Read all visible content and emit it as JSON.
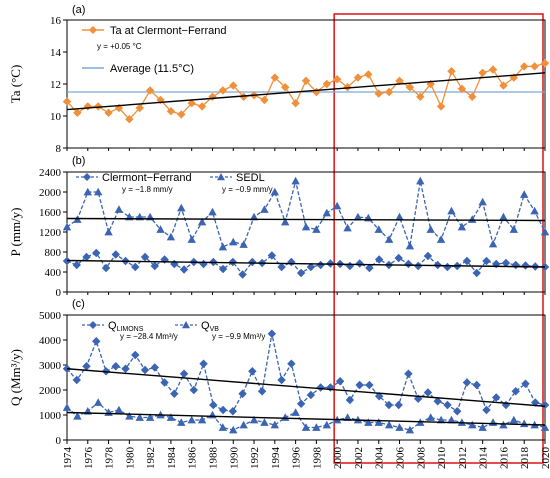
{
  "chart_data": [
    {
      "panel": "(a)",
      "type": "line",
      "ylabel": "Ta (°C)",
      "ylim": [
        8,
        16
      ],
      "yticks": [
        8,
        10,
        12,
        14,
        16
      ],
      "x_start": 1974,
      "series": [
        {
          "name": "Ta at Clermont−Ferrand",
          "color": "#f0903a",
          "marker": "diamond",
          "values": [
            10.9,
            10.2,
            10.6,
            10.6,
            10.2,
            10.5,
            9.8,
            10.5,
            11.6,
            11.0,
            10.3,
            10.1,
            10.8,
            10.6,
            11.2,
            11.6,
            11.9,
            11.2,
            11.3,
            11.0,
            12.4,
            11.8,
            10.8,
            12.2,
            11.5,
            12.0,
            12.3,
            11.8,
            12.4,
            12.6,
            11.4,
            11.5,
            12.2,
            11.8,
            11.2,
            12.0,
            10.6,
            12.8,
            11.7,
            11.2,
            12.7,
            12.9,
            11.9,
            12.4,
            13.1,
            13.1,
            13.3
          ]
        }
      ],
      "trend": {
        "label": "y = +0.05 °C",
        "start": 10.4,
        "end": 12.7
      },
      "average": {
        "label": "Average (11.5°C)",
        "value": 11.5,
        "color": "#7fa7d6"
      }
    },
    {
      "panel": "(b)",
      "type": "line",
      "ylabel": "P (mm/y)",
      "ylim": [
        0,
        2400
      ],
      "yticks": [
        0,
        400,
        800,
        1200,
        1600,
        2000,
        2400
      ],
      "x_start": 1974,
      "series": [
        {
          "name": "Clermont−Ferrand",
          "color": "#3b64b3",
          "marker": "diamond",
          "values": [
            620,
            540,
            700,
            780,
            480,
            750,
            620,
            500,
            700,
            520,
            650,
            560,
            450,
            600,
            560,
            600,
            460,
            600,
            350,
            600,
            580,
            730,
            500,
            600,
            380,
            500,
            540,
            570,
            560,
            520,
            570,
            480,
            650,
            540,
            680,
            560,
            520,
            720,
            540,
            500,
            520,
            620,
            380,
            620,
            560,
            580,
            540,
            530,
            510,
            500
          ]
        },
        {
          "name": "SEDL",
          "color": "#3b64b3",
          "marker": "triangle",
          "values": [
            1300,
            1450,
            2000,
            2000,
            1200,
            1650,
            1500,
            1500,
            1500,
            1250,
            1100,
            1680,
            1050,
            1400,
            1600,
            900,
            1000,
            950,
            1500,
            1650,
            2000,
            1400,
            2220,
            1300,
            1250,
            1580,
            1720,
            1280,
            1500,
            1480,
            1250,
            1050,
            1500,
            920,
            2220,
            1250,
            1050,
            1620,
            1300,
            1450,
            1800,
            960,
            1500,
            1250,
            1950,
            1620,
            1200
          ]
        }
      ],
      "trends": [
        {
          "label": "y = −1.8 mm/y",
          "start": 630,
          "end": 500
        },
        {
          "label": "y = −0.9 mm/y",
          "start": 1470,
          "end": 1430
        }
      ]
    },
    {
      "panel": "(c)",
      "type": "line",
      "ylabel": "Q (Mm³/y)",
      "ylim": [
        0,
        5000
      ],
      "yticks": [
        0,
        1000,
        2000,
        3000,
        4000,
        5000
      ],
      "x_start": 1974,
      "xticks": [
        1974,
        1976,
        1978,
        1980,
        1982,
        1984,
        1986,
        1988,
        1990,
        1992,
        1994,
        1996,
        1998,
        2000,
        2002,
        2004,
        2006,
        2008,
        2010,
        2012,
        2014,
        2016,
        2018,
        2020
      ],
      "series": [
        {
          "name": "QLIMONS",
          "color": "#3b64b3",
          "marker": "diamond",
          "values": [
            2850,
            2400,
            2950,
            3950,
            2750,
            2950,
            2850,
            3400,
            2800,
            2900,
            2300,
            1850,
            2650,
            2000,
            3050,
            1400,
            1200,
            1150,
            1850,
            2750,
            1950,
            4250,
            2400,
            3050,
            1450,
            1800,
            2100,
            2100,
            2350,
            1600,
            2200,
            2200,
            1750,
            1400,
            1400,
            2650,
            1650,
            1900,
            1550,
            1400,
            1150,
            2300,
            2200,
            1200,
            1700,
            1400,
            1950,
            2250,
            1500,
            1400
          ]
        },
        {
          "name": "QVB",
          "color": "#3b64b3",
          "marker": "triangle",
          "values": [
            1300,
            950,
            1150,
            1500,
            1100,
            1200,
            950,
            900,
            900,
            1000,
            900,
            700,
            800,
            800,
            1000,
            500,
            400,
            600,
            800,
            700,
            600,
            900,
            1100,
            500,
            500,
            600,
            800,
            900,
            800,
            700,
            700,
            600,
            500,
            400,
            700,
            900,
            800,
            800,
            700,
            600,
            500,
            700,
            600,
            800,
            650,
            600,
            500
          ]
        }
      ],
      "trends": [
        {
          "label": "y = −28.4 Mm³/y",
          "start": 2850,
          "end": 1350
        },
        {
          "label": "y = −9.9 Mm³/y",
          "start": 1100,
          "end": 600
        }
      ]
    }
  ],
  "legend": {
    "a_series": "Ta at Clermont−Ferrand",
    "a_trend": "y = +0.05 °C",
    "a_avg": "Average (11.5°C)",
    "b_s1": "Clermont−Ferrand",
    "b_s2": "SEDL",
    "b_t1": "y = −1.8 mm/y",
    "b_t2": "y = −0.9 mm/y",
    "c_s1_main": "Q",
    "c_s1_sub": "LIMONS",
    "c_s2_main": "Q",
    "c_s2_sub": "VB",
    "c_t1": "y = −28.4 Mm³/y",
    "c_t2": "y = −9.9 Mm³/y"
  },
  "highlight_box": {
    "color": "#e02020",
    "from_year": 2000,
    "to_year": 2020
  }
}
